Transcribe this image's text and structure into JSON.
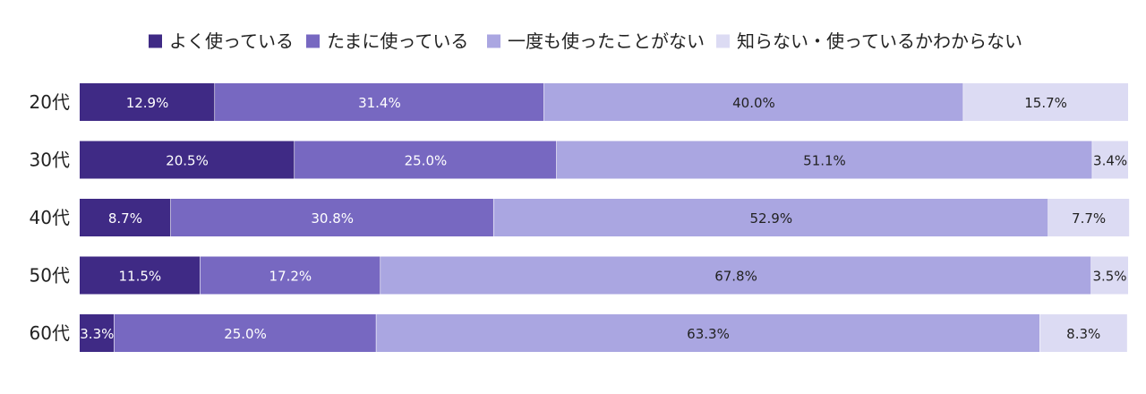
{
  "chart_data": {
    "type": "bar",
    "orientation": "horizontal",
    "stacked": true,
    "percent_stacked": true,
    "categories": [
      "20代",
      "30代",
      "40代",
      "50代",
      "60代"
    ],
    "series": [
      {
        "name": "よく使っている",
        "color": "#3f2a85",
        "label_color": "#ffffff",
        "values": [
          12.9,
          20.5,
          8.7,
          11.5,
          3.3
        ]
      },
      {
        "name": "たまに使っている",
        "color": "#7768c1",
        "label_color": "#ffffff",
        "values": [
          31.4,
          25.0,
          30.8,
          17.2,
          25.0
        ]
      },
      {
        "name": "一度も使ったことがない",
        "color": "#aaa6e1",
        "label_color": "#222222",
        "values": [
          40.0,
          51.1,
          52.9,
          67.8,
          63.3
        ]
      },
      {
        "name": "知らない・使っているかわからない",
        "color": "#dcdbf3",
        "label_color": "#222222",
        "values": [
          15.7,
          3.4,
          7.7,
          3.5,
          8.3
        ]
      }
    ],
    "value_suffix": "%",
    "xlim": [
      0,
      100
    ],
    "legend_position": "top-center",
    "grid": false
  }
}
